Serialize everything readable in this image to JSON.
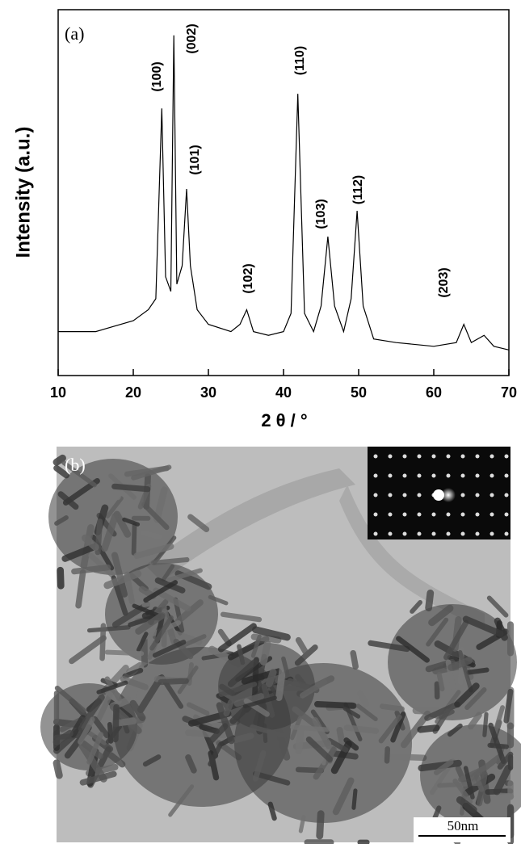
{
  "chart_data": {
    "type": "line",
    "panel_label": "(a)",
    "y_label": "Intensity (a.u.)",
    "x_label": "2 θ / °",
    "x": [
      10,
      15,
      20,
      22,
      23,
      23.8,
      24.3,
      25,
      25.4,
      25.8,
      26.5,
      27.1,
      27.6,
      28.5,
      30,
      33,
      34.2,
      35.1,
      36,
      38,
      40,
      41,
      41.9,
      42.8,
      44,
      45,
      45.9,
      46.8,
      48,
      49,
      49.8,
      50.6,
      52,
      55,
      60,
      63,
      64,
      65,
      66.7,
      68,
      70
    ],
    "series": [
      {
        "color": "#000000",
        "values": [
          12,
          12,
          15,
          18,
          21,
          73,
          27,
          23,
          93,
          25,
          30,
          51,
          30,
          18,
          14,
          12,
          14,
          18,
          12,
          11,
          12,
          17,
          77,
          17,
          12,
          19,
          38,
          19,
          12,
          21,
          45,
          19,
          10,
          9,
          8,
          9,
          14,
          9,
          11,
          8,
          7
        ]
      }
    ],
    "annotations": [
      "(100)",
      "(002)",
      "(101)",
      "(102)",
      "(110)",
      "(103)",
      "(112)",
      "(203)"
    ],
    "xlim": [
      10,
      70
    ],
    "xticks": [
      10,
      20,
      30,
      40,
      50,
      60,
      70
    ],
    "ylim": [
      0,
      100
    ],
    "grid": false
  },
  "image_panel": {
    "label": "(b)",
    "scale_bar": "50nm"
  }
}
